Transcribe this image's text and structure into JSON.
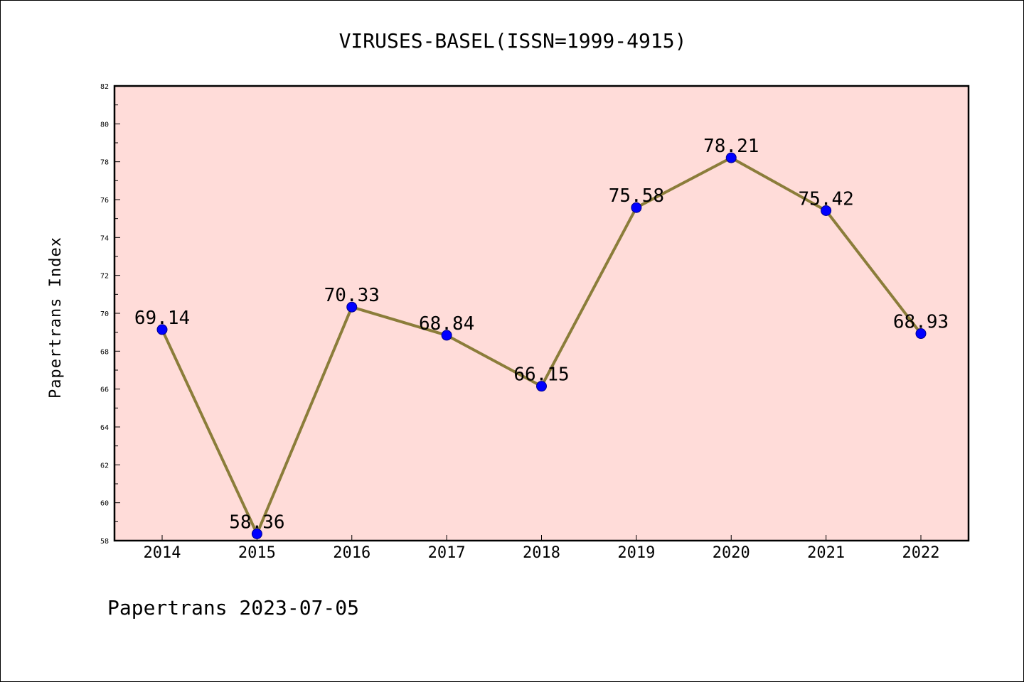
{
  "chart_data": {
    "type": "line",
    "title": "VIRUSES-BASEL(ISSN=1999-4915)",
    "xlabel": "",
    "ylabel": "Papertrans Index",
    "categories": [
      "2014",
      "2015",
      "2016",
      "2017",
      "2018",
      "2019",
      "2020",
      "2021",
      "2022"
    ],
    "series": [
      {
        "values": [
          69.14,
          58.36,
          70.33,
          68.84,
          66.15,
          75.58,
          78.21,
          75.42,
          68.93
        ],
        "labels": [
          "69.14",
          "58.36",
          "70.33",
          "68.84",
          "66.15",
          "75.58",
          "78.21",
          "75.42",
          "68.93"
        ],
        "line_color": "#8b7d3a",
        "marker_color": "#0000ff"
      }
    ],
    "ylim": [
      58,
      82
    ],
    "yticks": [
      "58",
      "60",
      "62",
      "64",
      "66",
      "68",
      "70",
      "72",
      "74",
      "76",
      "78",
      "80",
      "82"
    ],
    "plot_background": "#ffdcd9",
    "grid": false,
    "legend": "none"
  },
  "footer": "Papertrans 2023-07-05"
}
